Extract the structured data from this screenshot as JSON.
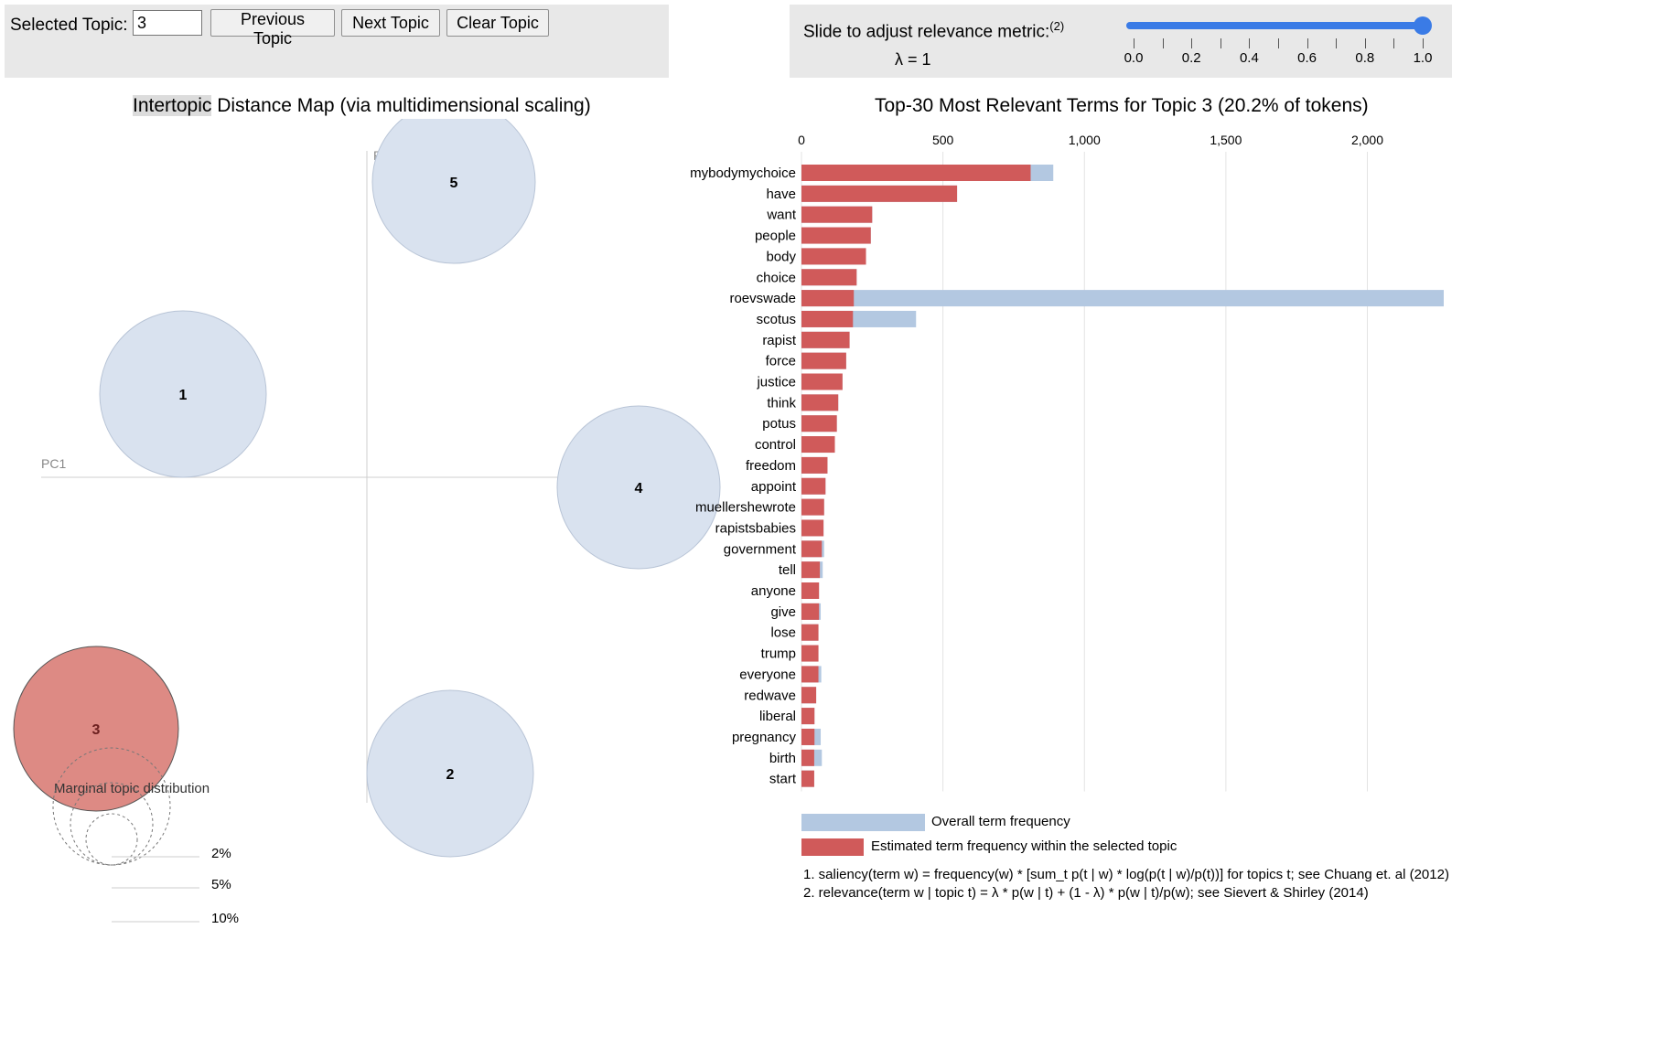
{
  "controls": {
    "selected_topic_label": "Selected Topic:",
    "selected_topic_value": "3",
    "previous_label": "Previous Topic",
    "next_label": "Next Topic",
    "clear_label": "Clear Topic"
  },
  "lambda": {
    "label": "Slide to adjust relevance metric:",
    "footnote": "(2)",
    "value_text": "λ = 1",
    "value": 1.0,
    "ticks": [
      "0.0",
      "0.2",
      "0.4",
      "0.6",
      "0.8",
      "1.0"
    ]
  },
  "map": {
    "title_highlight": "Intertopic",
    "title_rest": " Distance Map (via multidimensional scaling)",
    "pc1_label": "PC1",
    "pc2_label": "PC2",
    "topics": [
      {
        "id": "1",
        "selected": false
      },
      {
        "id": "2",
        "selected": false
      },
      {
        "id": "3",
        "selected": true
      },
      {
        "id": "4",
        "selected": false
      },
      {
        "id": "5",
        "selected": false
      }
    ],
    "marginal_label": "Marginal topic distribution",
    "marginal_sizes": [
      "2%",
      "5%",
      "10%"
    ]
  },
  "colors": {
    "topic_circle": "#d9e2ef",
    "selected_circle": "#dd8a84",
    "overall_bar": "#b3c8e1",
    "topic_bar": "#d05a5a",
    "slider": "#3a7be6"
  },
  "bars": {
    "title": "Top-30 Most Relevant Terms for Topic 3 (20.2% of tokens)",
    "axis_ticks": [
      0,
      500,
      1000,
      1500,
      2000
    ],
    "axis_tick_labels": [
      "0",
      "500",
      "1,000",
      "1,500",
      "2,000"
    ],
    "legend_overall": "Overall term frequency",
    "legend_topic": "Estimated term frequency within the selected topic",
    "note1": "1. saliency(term w) = frequency(w) * [sum_t p(t | w) * log(p(t | w)/p(t))] for topics t; see Chuang et. al (2012)",
    "note2": "2. relevance(term w | topic t) = λ * p(w | t) + (1 - λ) * p(w | t)/p(w); see Sievert & Shirley (2014)"
  },
  "chart_data": {
    "type": "bar",
    "orientation": "horizontal",
    "title": "Top-30 Most Relevant Terms for Topic 3 (20.2% of tokens)",
    "xlim": [
      0,
      2270
    ],
    "categories": [
      "mybodymychoice",
      "have",
      "want",
      "people",
      "body",
      "choice",
      "roevswade",
      "scotus",
      "rapist",
      "force",
      "justice",
      "think",
      "potus",
      "control",
      "freedom",
      "appoint",
      "muellershewrote",
      "rapistsbabies",
      "government",
      "tell",
      "anyone",
      "give",
      "lose",
      "trump",
      "everyone",
      "redwave",
      "liberal",
      "pregnancy",
      "birth",
      "start"
    ],
    "series": [
      {
        "name": "Overall term frequency",
        "values": [
          890,
          550,
          250,
          245,
          228,
          195,
          2270,
          405,
          170,
          158,
          145,
          130,
          125,
          118,
          92,
          85,
          80,
          78,
          80,
          75,
          62,
          68,
          60,
          60,
          70,
          52,
          46,
          68,
          72,
          45
        ]
      },
      {
        "name": "Estimated term frequency within the selected topic",
        "values": [
          810,
          550,
          250,
          245,
          228,
          195,
          185,
          182,
          170,
          158,
          145,
          130,
          125,
          118,
          92,
          85,
          80,
          78,
          72,
          65,
          62,
          62,
          60,
          60,
          60,
          52,
          46,
          46,
          45,
          45
        ]
      }
    ]
  }
}
